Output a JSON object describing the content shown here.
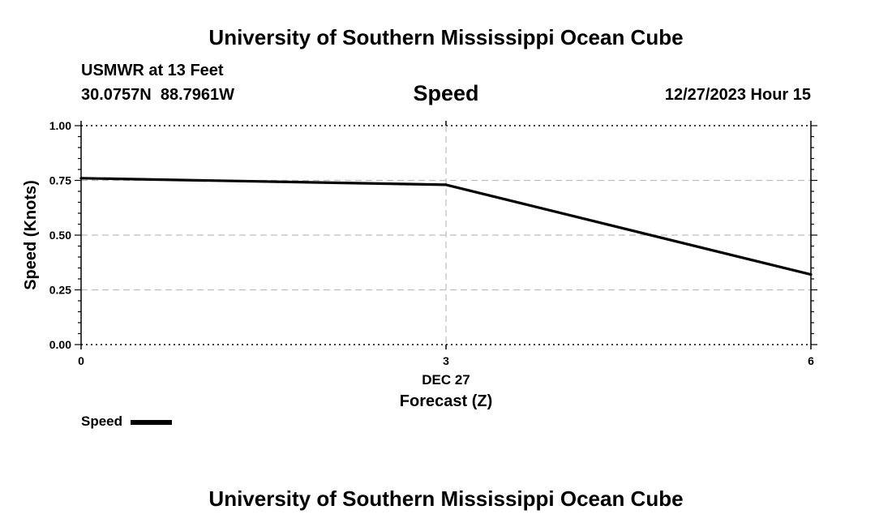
{
  "header": {
    "title": "University of Southern Mississippi Ocean Cube",
    "station": "USMWR at 13 Feet",
    "latitude": "30.0757N",
    "longitude": "88.7961W",
    "timestamp": "12/27/2023 Hour 15"
  },
  "footer": {
    "title": "University of Southern Mississippi Ocean Cube"
  },
  "chart_data": {
    "type": "line",
    "title": "Speed",
    "xlabel": "Forecast (Z)",
    "ylabel": "Speed (Knots)",
    "x_date_label": "DEC 27",
    "x": [
      0,
      3,
      6
    ],
    "x_tick_labels": [
      "0",
      "3",
      "6"
    ],
    "xlim": [
      0,
      6
    ],
    "ylim": [
      0,
      1
    ],
    "y_ticks": [
      0,
      0.25,
      0.5,
      0.75,
      1.0
    ],
    "y_tick_labels": [
      "0.00",
      "0.25",
      "0.50",
      "0.75",
      "1.00"
    ],
    "grid": true,
    "series": [
      {
        "name": "Speed",
        "values": [
          0.76,
          0.73,
          0.32
        ],
        "color": "#000000"
      }
    ],
    "legend": {
      "position": "bottom-left",
      "entries": [
        "Speed"
      ]
    }
  }
}
